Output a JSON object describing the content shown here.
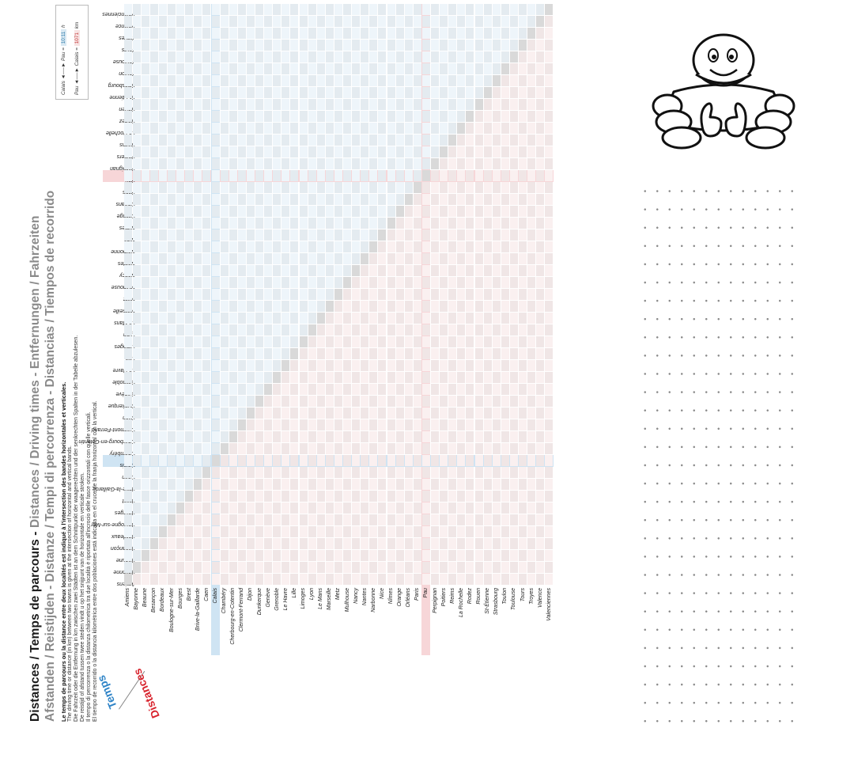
{
  "title": {
    "line1_dark": "Distances / Temps de parcours - ",
    "line1_grey": "Distances / Driving times - Entfernungen / Fahrzeiten",
    "line2": "Afstanden / Reistijden - Distanze / Tempi di percorrenza - Distancias / Tiempos de recorrido"
  },
  "description": {
    "fr": "Le temps de parcours ou la distance entre deux localités est indiqué à l'intersection des bandes horizontales et verticales.",
    "en": "The driving time or distance (in km) between two towns is given at the intersection of horizontal and vertical bands.",
    "de": "Die Fahrzeit oder die Entfernung in km zwischen zwei Städten ist an dem Schnittpunkt der waagerechten und der senkrechten Spalten in der Tabelle abzulesen.",
    "nl": "De reistijd of afstand tussen twee steden vindt u op het snijpunt van de horizontale en verticale stroken.",
    "it": "Il tempo di percorrenza o la distanza chilometrica tra due località è riportata all'incrocio delle fasce orizzontali con quelle verticali.",
    "es": "El tiempo de recorrido o la distancia kilométrica entre dos poblaciones está indicada en el cruce de la franja horizontal con la vertical."
  },
  "legend": {
    "row1_label": "Calais",
    "row1_arrow": "◄──►",
    "row1_label2": "Pau =",
    "row1_value": "10:11",
    "row1_unit": "h",
    "row2_label": "Pau",
    "row2_arrow": "◄──►",
    "row2_label2": "Calais =",
    "row2_value": "1071",
    "row2_unit": "km"
  },
  "corner": {
    "times_label": "Temps",
    "distances_label": "Distances"
  },
  "towns": [
    "Amiens",
    "Bayonne",
    "Beaune",
    "Besançon",
    "Bordeaux",
    "Boulogne-sur-Mer",
    "Bourges",
    "Brest",
    "Brive-la-Gaillarde",
    "Caen",
    "Calais",
    "Chambéry",
    "Cherbourg-en-Cotentin",
    "Clermont-Ferrand",
    "Dijon",
    "Dunkerque",
    "Genève",
    "Grenoble",
    "Le Havre",
    "Lille",
    "Limoges",
    "Lyon",
    "Le Mans",
    "Marseille",
    "Metz",
    "Mulhouse",
    "Nancy",
    "Nantes",
    "Narbonne",
    "Nice",
    "Nîmes",
    "Orange",
    "Orléans",
    "Paris",
    "Pau",
    "Perpignan",
    "Poitiers",
    "Reims",
    "La Rochelle",
    "Rodez",
    "Rouen",
    "St-Étienne",
    "Strasbourg",
    "Toulon",
    "Toulouse",
    "Tours",
    "Troyes",
    "Valence",
    "Valenciennes"
  ],
  "highlight": {
    "pau_town": "Pau",
    "calais_town": "Calais"
  },
  "colors": {
    "time": "#3a8bc4",
    "distance": "#c8343a",
    "pau_band": "#f7d6d8",
    "calais_band": "#cfe4f3"
  }
}
